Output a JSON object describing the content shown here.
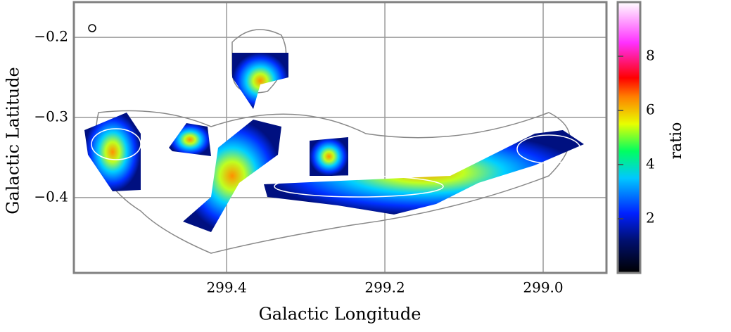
{
  "chart_data": {
    "type": "heatmap",
    "xlabel": "Galactic Longitude",
    "ylabel": "Galactic Latitude",
    "xlim": [
      299.593,
      298.92
    ],
    "xticks": [
      299.4,
      299.2,
      {
        "value": 299,
        "label": "299.0"
      }
    ],
    "ylim": [
      -0.494,
      -0.156
    ],
    "yticks": [
      {
        "value": -0.4,
        "label": "−0.4"
      },
      {
        "value": -0.3,
        "label": "−0.3"
      },
      {
        "value": -0.2,
        "label": "−0.2"
      }
    ],
    "grid": true,
    "colorbar": {
      "label": "ratio",
      "lim": [
        0,
        10
      ],
      "ticks": [
        2,
        4,
        6,
        8
      ]
    }
  }
}
